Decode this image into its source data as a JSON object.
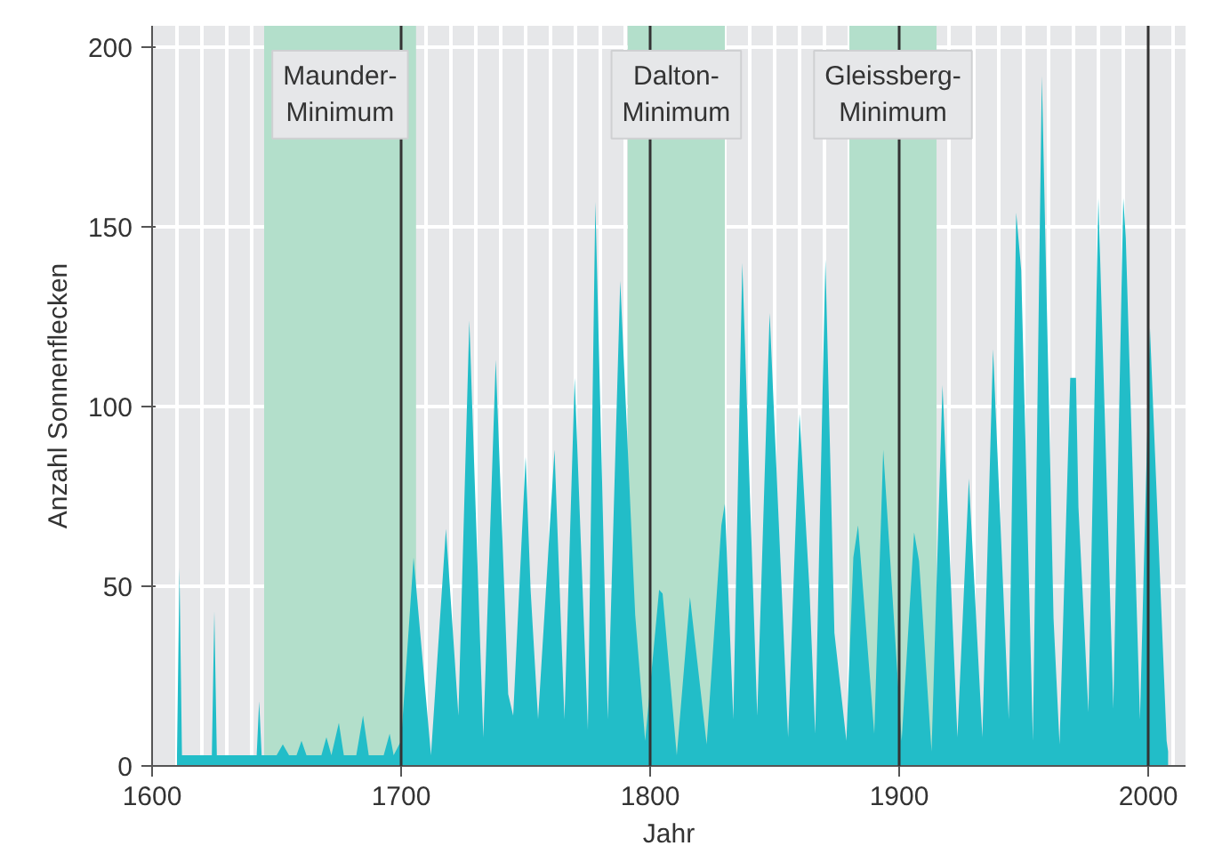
{
  "chart_data": {
    "type": "area",
    "xlabel": "Jahr",
    "ylabel": "Anzahl Sonnenflecken",
    "x": [
      1610,
      1611,
      1612,
      1624,
      1625,
      1626,
      1642,
      1643,
      1644,
      1650,
      1652.5,
      1655,
      1658,
      1660,
      1662,
      1668,
      1670,
      1672,
      1675,
      1677,
      1682,
      1684.7,
      1687,
      1693,
      1695.4,
      1697,
      1700,
      1705,
      1712,
      1718,
      1721.5,
      1723,
      1727.4,
      1733,
      1738,
      1743,
      1745,
      1750,
      1752,
      1755,
      1761.6,
      1765.6,
      1769.7,
      1775,
      1778,
      1783,
      1788,
      1794,
      1798,
      1803.6,
      1805,
      1810.7,
      1816,
      1822.7,
      1828.6,
      1830,
      1833.4,
      1837,
      1843,
      1848,
      1855.4,
      1860,
      1864,
      1866.3,
      1870.4,
      1874,
      1878.8,
      1881.6,
      1883.5,
      1890,
      1893.6,
      1901,
      1906,
      1908,
      1913,
      1917.4,
      1923.4,
      1928,
      1933.4,
      1937.7,
      1944,
      1947,
      1949,
      1953.7,
      1957.3,
      1962,
      1964.4,
      1968.7,
      1971,
      1972,
      1976,
      1980,
      1986,
      1990,
      1991,
      1996.7,
      2000.7,
      2007.4,
      2008
    ],
    "series": [
      {
        "color": "#22bdc8",
        "values": [
          3,
          55,
          3,
          3,
          43,
          3,
          3,
          18,
          3,
          3,
          6,
          3,
          3,
          7,
          3,
          3,
          8,
          3,
          12,
          3,
          3,
          14,
          3,
          3,
          9,
          3,
          7,
          58,
          3,
          66,
          30,
          14,
          124,
          8,
          113,
          20,
          14,
          86,
          49,
          13,
          88,
          13,
          108,
          10,
          157,
          13,
          135,
          42,
          7,
          49,
          48,
          3,
          47,
          6,
          67,
          73,
          13,
          140,
          14,
          126,
          8,
          98,
          49,
          9,
          141,
          37,
          7,
          58,
          67,
          9,
          88,
          7,
          65,
          57,
          4,
          106,
          8,
          80,
          8,
          116,
          13,
          154,
          138,
          7,
          192,
          41,
          6,
          108,
          108,
          72,
          15,
          158,
          16,
          158,
          147,
          13,
          122,
          7,
          4
        ]
      }
    ],
    "xlim": [
      1600,
      2015
    ],
    "ylim": [
      0,
      206
    ],
    "xticks": [
      1600,
      1700,
      1800,
      1900,
      2000
    ],
    "yticks": [
      0,
      50,
      100,
      150,
      200
    ],
    "grid": true,
    "ref_lines": [
      {
        "axis": "x",
        "value": 1700,
        "color": "#333333"
      },
      {
        "axis": "x",
        "value": 1800,
        "color": "#333333"
      },
      {
        "axis": "x",
        "value": 1900,
        "color": "#333333"
      },
      {
        "axis": "x",
        "value": 2000,
        "color": "#333333"
      }
    ],
    "bands": [
      {
        "axis": "x",
        "from": 1645,
        "to": 1706,
        "label": "Maunder-\nMinimum",
        "color": "#b3dfcb"
      },
      {
        "axis": "x",
        "from": 1791,
        "to": 1830,
        "label": "Dalton-\nMinimum",
        "color": "#b3dfcb"
      },
      {
        "axis": "x",
        "from": 1880,
        "to": 1915,
        "label": "Gleissberg-\nMinimum",
        "color": "#b3dfcb"
      }
    ]
  }
}
